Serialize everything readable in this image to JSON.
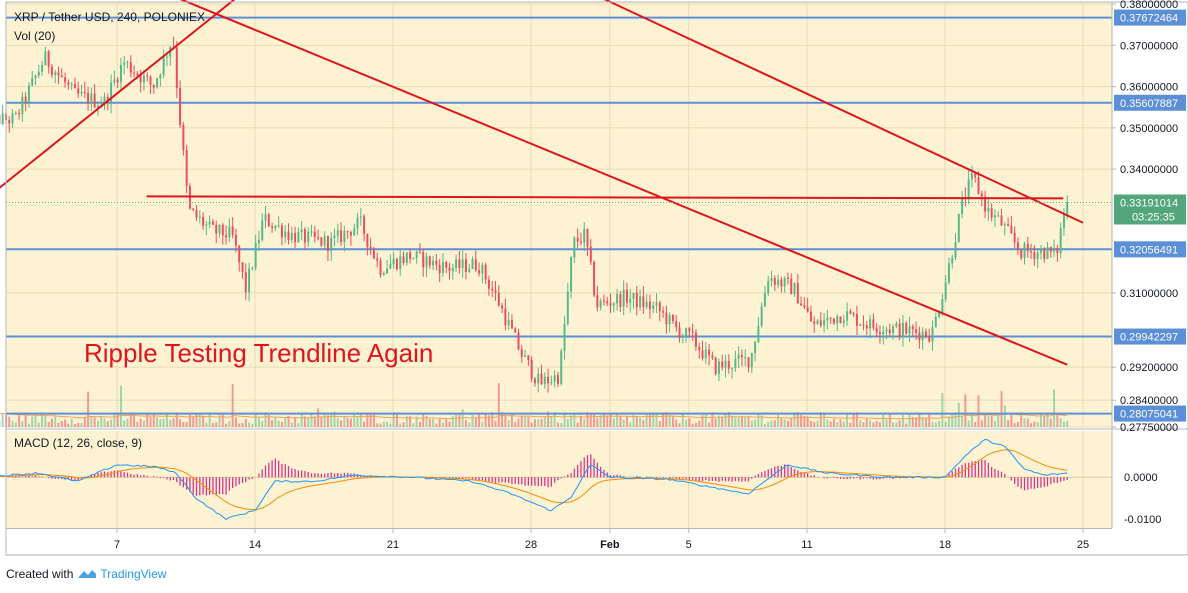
{
  "header": {
    "symbol_title": "XRP / Tether USD, 240, POLONIEX",
    "volume_label": "Vol (20)"
  },
  "annotation": "Ripple Testing Trendline Again",
  "macd_label": "MACD (12, 26, close, 9)",
  "footer": {
    "created_with": "Created with",
    "brand": "TradingView"
  },
  "colors": {
    "background": "#fdf3d2",
    "up": "#53b987",
    "down": "#eb4d5c",
    "trendline": "#e0141e",
    "horizontal_level": "#5b8fd8",
    "volume_ma": "#f1a35c",
    "macd_line": "#2196f3",
    "signal_line": "#ff8c00",
    "histogram": "#d8368e"
  },
  "chart_data": [
    {
      "type": "candlestick",
      "title": "XRP / Tether USD, 240, POLONIEX",
      "x_ticks": [
        {
          "label": "7",
          "day": 7
        },
        {
          "label": "14",
          "day": 14
        },
        {
          "label": "21",
          "day": 21
        },
        {
          "label": "28",
          "day": 28
        },
        {
          "label": "Feb",
          "day": 32
        },
        {
          "label": "5",
          "day": 36
        },
        {
          "label": "11",
          "day": 42
        },
        {
          "label": "18",
          "day": 49
        },
        {
          "label": "25",
          "day": 56
        }
      ],
      "y_ticks": [
        "0.38000000",
        "0.37000000",
        "0.36000000",
        "0.35000000",
        "0.34000000",
        "0.31000000",
        "0.29200000",
        "0.28400000",
        "0.27750000"
      ],
      "ylim": [
        0.2775,
        0.3805
      ],
      "price_levels": [
        {
          "value": 0.37672464,
          "label": "0.37672464"
        },
        {
          "value": 0.35607887,
          "label": "0.35607887"
        },
        {
          "value": 0.32056491,
          "label": "0.32056491"
        },
        {
          "value": 0.29942297,
          "label": "0.29942297"
        },
        {
          "value": 0.28075041,
          "label": "0.28075041"
        }
      ],
      "last_price": {
        "value": 0.33191014,
        "label": "0.33191014",
        "countdown": "03:25:35"
      },
      "key_prices": [
        {
          "day": 2.0,
          "price": 0.352
        },
        {
          "day": 3.5,
          "price": 0.367
        },
        {
          "day": 5.0,
          "price": 0.358
        },
        {
          "day": 6.5,
          "price": 0.356
        },
        {
          "day": 7.5,
          "price": 0.366
        },
        {
          "day": 9.0,
          "price": 0.36
        },
        {
          "day": 10.0,
          "price": 0.372
        },
        {
          "day": 10.3,
          "price": 0.355
        },
        {
          "day": 10.8,
          "price": 0.33
        },
        {
          "day": 12.0,
          "price": 0.325
        },
        {
          "day": 13.0,
          "price": 0.324
        },
        {
          "day": 13.7,
          "price": 0.311
        },
        {
          "day": 14.6,
          "price": 0.328
        },
        {
          "day": 16.0,
          "price": 0.324
        },
        {
          "day": 18.0,
          "price": 0.322
        },
        {
          "day": 19.5,
          "price": 0.327
        },
        {
          "day": 20.5,
          "price": 0.316
        },
        {
          "day": 22.0,
          "price": 0.319
        },
        {
          "day": 24.0,
          "price": 0.316
        },
        {
          "day": 25.5,
          "price": 0.317
        },
        {
          "day": 26.5,
          "price": 0.308
        },
        {
          "day": 27.7,
          "price": 0.295
        },
        {
          "day": 28.6,
          "price": 0.288
        },
        {
          "day": 29.6,
          "price": 0.29
        },
        {
          "day": 30.3,
          "price": 0.322
        },
        {
          "day": 30.9,
          "price": 0.324
        },
        {
          "day": 31.5,
          "price": 0.307
        },
        {
          "day": 33.0,
          "price": 0.309
        },
        {
          "day": 34.6,
          "price": 0.306
        },
        {
          "day": 35.6,
          "price": 0.301
        },
        {
          "day": 36.3,
          "price": 0.299
        },
        {
          "day": 37.5,
          "price": 0.292
        },
        {
          "day": 39.3,
          "price": 0.294
        },
        {
          "day": 40.2,
          "price": 0.314
        },
        {
          "day": 41.5,
          "price": 0.311
        },
        {
          "day": 42.5,
          "price": 0.302
        },
        {
          "day": 44.0,
          "price": 0.305
        },
        {
          "day": 45.5,
          "price": 0.302
        },
        {
          "day": 47.0,
          "price": 0.301
        },
        {
          "day": 48.5,
          "price": 0.3
        },
        {
          "day": 49.3,
          "price": 0.315
        },
        {
          "day": 50.1,
          "price": 0.333
        },
        {
          "day": 50.6,
          "price": 0.338
        },
        {
          "day": 51.3,
          "price": 0.33
        },
        {
          "day": 52.0,
          "price": 0.327
        },
        {
          "day": 53.0,
          "price": 0.32
        },
        {
          "day": 54.3,
          "price": 0.32
        },
        {
          "day": 54.8,
          "price": 0.319
        },
        {
          "day": 55.3,
          "price": 0.3319
        }
      ],
      "trendlines": [
        {
          "from": {
            "day": 0.0,
            "price": 0.3315
          },
          "to": {
            "day": 16.0,
            "price": 0.3928
          }
        },
        {
          "from": {
            "day": 6.0,
            "price": 0.3895
          },
          "to": {
            "day": 55.2,
            "price": 0.2926
          }
        },
        {
          "from": {
            "day": 28.0,
            "price": 0.3895
          },
          "to": {
            "day": 56.0,
            "price": 0.327
          }
        },
        {
          "from": {
            "day": 8.5,
            "price": 0.3334
          },
          "to": {
            "day": 55.0,
            "price": 0.3329
          }
        }
      ]
    },
    {
      "type": "bar",
      "title": "Vol (20)",
      "note": "volume histogram with 20-period moving average"
    },
    {
      "type": "line",
      "title": "MACD (12, 26, close, 9)",
      "y_ticks": [
        "0.0000",
        "-0.0100"
      ],
      "ylim": [
        -0.0122,
        0.0111
      ],
      "key_macd": [
        {
          "day": 0.0,
          "value": 0.0
        },
        {
          "day": 3.0,
          "value": 0.001
        },
        {
          "day": 5.0,
          "value": -0.001
        },
        {
          "day": 7.0,
          "value": 0.003
        },
        {
          "day": 9.0,
          "value": 0.0025
        },
        {
          "day": 10.0,
          "value": 0.001
        },
        {
          "day": 11.0,
          "value": -0.005
        },
        {
          "day": 12.5,
          "value": -0.01
        },
        {
          "day": 14.0,
          "value": -0.008
        },
        {
          "day": 15.0,
          "value": -0.001
        },
        {
          "day": 17.0,
          "value": -0.001
        },
        {
          "day": 19.0,
          "value": 0.0005
        },
        {
          "day": 22.0,
          "value": 0.0
        },
        {
          "day": 25.0,
          "value": -0.001
        },
        {
          "day": 27.0,
          "value": -0.004
        },
        {
          "day": 29.0,
          "value": -0.008
        },
        {
          "day": 30.0,
          "value": -0.005
        },
        {
          "day": 31.0,
          "value": 0.003
        },
        {
          "day": 32.0,
          "value": 0.0
        },
        {
          "day": 35.0,
          "value": -0.0005
        },
        {
          "day": 39.0,
          "value": -0.004
        },
        {
          "day": 41.0,
          "value": 0.003
        },
        {
          "day": 43.0,
          "value": 0.001
        },
        {
          "day": 46.0,
          "value": 0.0
        },
        {
          "day": 49.0,
          "value": 0.0
        },
        {
          "day": 50.0,
          "value": 0.005
        },
        {
          "day": 51.0,
          "value": 0.009
        },
        {
          "day": 52.0,
          "value": 0.0075
        },
        {
          "day": 53.0,
          "value": 0.002
        },
        {
          "day": 54.0,
          "value": 0.0005
        },
        {
          "day": 55.3,
          "value": 0.001
        }
      ]
    }
  ]
}
